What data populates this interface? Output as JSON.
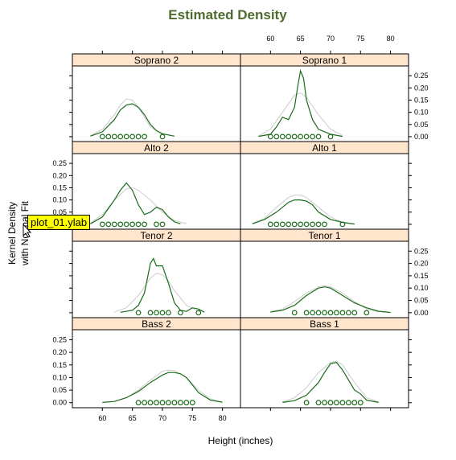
{
  "chart_data": {
    "type": "line",
    "title": "Estimated Density",
    "xlabel": "Height (inches)",
    "ylabel_lines": [
      "Kernel Density",
      "with Normal Fit"
    ],
    "xlim": [
      55,
      83
    ],
    "ylim": [
      -0.02,
      0.29
    ],
    "x_ticks": [
      60,
      65,
      70,
      75,
      80
    ],
    "y_ticks": [
      0,
      0.05,
      0.1,
      0.15,
      0.2,
      0.25
    ],
    "y_tick_labels": [
      "0.00",
      "0.05",
      "0.10",
      "0.15",
      "0.20",
      "0.25"
    ],
    "colors": {
      "density": "#1a6b1a",
      "normal_fit": "#cccccc",
      "points": "#1a6b1a",
      "strip": "#ffe5cc",
      "title": "#4f6b2f"
    },
    "panels": [
      {
        "name": "Soprano 2",
        "density": [
          [
            58,
            0.002
          ],
          [
            60,
            0.02
          ],
          [
            62,
            0.07
          ],
          [
            63,
            0.11
          ],
          [
            64,
            0.13
          ],
          [
            65,
            0.135
          ],
          [
            66,
            0.12
          ],
          [
            67,
            0.09
          ],
          [
            68,
            0.05
          ],
          [
            69,
            0.025
          ],
          [
            70,
            0.012
          ],
          [
            72,
            0.002
          ]
        ],
        "normal_fit": [
          [
            58,
            0.005
          ],
          [
            60,
            0.03
          ],
          [
            62,
            0.09
          ],
          [
            63,
            0.13
          ],
          [
            64,
            0.155
          ],
          [
            65,
            0.15
          ],
          [
            66,
            0.12
          ],
          [
            67,
            0.08
          ],
          [
            68,
            0.04
          ],
          [
            70,
            0.008
          ]
        ],
        "points": [
          60,
          61,
          62,
          63,
          64,
          65,
          66,
          67,
          70
        ]
      },
      {
        "name": "Soprano 1",
        "density": [
          [
            58,
            0.001
          ],
          [
            60,
            0.01
          ],
          [
            61,
            0.04
          ],
          [
            62,
            0.08
          ],
          [
            63,
            0.07
          ],
          [
            64,
            0.12
          ],
          [
            64.5,
            0.2
          ],
          [
            65,
            0.27
          ],
          [
            65.5,
            0.24
          ],
          [
            66,
            0.15
          ],
          [
            67,
            0.07
          ],
          [
            68,
            0.03
          ],
          [
            70,
            0.01
          ],
          [
            72,
            0.001
          ]
        ],
        "normal_fit": [
          [
            58,
            0.003
          ],
          [
            60,
            0.03
          ],
          [
            62,
            0.1
          ],
          [
            64,
            0.17
          ],
          [
            65,
            0.18
          ],
          [
            66,
            0.16
          ],
          [
            68,
            0.09
          ],
          [
            70,
            0.03
          ],
          [
            72,
            0.005
          ]
        ],
        "points": [
          60,
          61,
          62,
          63,
          64,
          65,
          66,
          67,
          68,
          70
        ]
      },
      {
        "name": "Alto 2",
        "density": [
          [
            58,
            0.002
          ],
          [
            60,
            0.03
          ],
          [
            62,
            0.1
          ],
          [
            63,
            0.14
          ],
          [
            64,
            0.17
          ],
          [
            65,
            0.14
          ],
          [
            66,
            0.08
          ],
          [
            67,
            0.04
          ],
          [
            68,
            0.05
          ],
          [
            69,
            0.07
          ],
          [
            70,
            0.06
          ],
          [
            71,
            0.03
          ],
          [
            72,
            0.01
          ],
          [
            73,
            0.002
          ]
        ],
        "normal_fit": [
          [
            58,
            0.005
          ],
          [
            60,
            0.04
          ],
          [
            62,
            0.1
          ],
          [
            64,
            0.145
          ],
          [
            65,
            0.15
          ],
          [
            66,
            0.14
          ],
          [
            68,
            0.1
          ],
          [
            70,
            0.05
          ],
          [
            72,
            0.015
          ],
          [
            74,
            0.003
          ]
        ],
        "points": [
          60,
          61,
          62,
          63,
          64,
          65,
          66,
          67,
          69,
          70
        ]
      },
      {
        "name": "Alto 1",
        "density": [
          [
            57,
            0.002
          ],
          [
            59,
            0.02
          ],
          [
            61,
            0.05
          ],
          [
            62,
            0.07
          ],
          [
            63,
            0.09
          ],
          [
            64,
            0.1
          ],
          [
            65,
            0.1
          ],
          [
            66,
            0.095
          ],
          [
            67,
            0.08
          ],
          [
            68,
            0.05
          ],
          [
            69,
            0.035
          ],
          [
            70,
            0.02
          ],
          [
            72,
            0.008
          ],
          [
            74,
            0.001
          ]
        ],
        "normal_fit": [
          [
            57,
            0.004
          ],
          [
            59,
            0.025
          ],
          [
            61,
            0.07
          ],
          [
            63,
            0.11
          ],
          [
            64,
            0.12
          ],
          [
            65,
            0.12
          ],
          [
            66,
            0.11
          ],
          [
            68,
            0.07
          ],
          [
            70,
            0.03
          ],
          [
            72,
            0.008
          ],
          [
            74,
            0.001
          ]
        ],
        "points": [
          60,
          61,
          62,
          63,
          64,
          65,
          66,
          67,
          68,
          69,
          72
        ]
      },
      {
        "name": "Tenor 2",
        "density": [
          [
            63,
            0.002
          ],
          [
            65,
            0.01
          ],
          [
            66,
            0.03
          ],
          [
            67,
            0.08
          ],
          [
            68,
            0.2
          ],
          [
            68.5,
            0.22
          ],
          [
            69,
            0.19
          ],
          [
            70,
            0.19
          ],
          [
            71,
            0.12
          ],
          [
            72,
            0.04
          ],
          [
            73,
            0.01
          ],
          [
            74,
            0.005
          ],
          [
            75,
            0.02
          ],
          [
            76,
            0.015
          ],
          [
            77,
            0.002
          ]
        ],
        "normal_fit": [
          [
            62,
            0.003
          ],
          [
            64,
            0.02
          ],
          [
            66,
            0.07
          ],
          [
            68,
            0.14
          ],
          [
            69,
            0.16
          ],
          [
            70,
            0.155
          ],
          [
            71,
            0.13
          ],
          [
            72,
            0.09
          ],
          [
            74,
            0.03
          ],
          [
            76,
            0.005
          ]
        ],
        "points": [
          66,
          68,
          69,
          70,
          71,
          73,
          76
        ]
      },
      {
        "name": "Tenor 1",
        "density": [
          [
            60,
            0.003
          ],
          [
            62,
            0.01
          ],
          [
            64,
            0.03
          ],
          [
            66,
            0.07
          ],
          [
            68,
            0.1
          ],
          [
            69,
            0.105
          ],
          [
            70,
            0.1
          ],
          [
            72,
            0.07
          ],
          [
            74,
            0.04
          ],
          [
            76,
            0.02
          ],
          [
            78,
            0.006
          ],
          [
            80,
            0.001
          ]
        ],
        "normal_fit": [
          [
            60,
            0.004
          ],
          [
            62,
            0.015
          ],
          [
            64,
            0.045
          ],
          [
            66,
            0.08
          ],
          [
            68,
            0.105
          ],
          [
            69,
            0.11
          ],
          [
            70,
            0.105
          ],
          [
            72,
            0.08
          ],
          [
            74,
            0.045
          ],
          [
            76,
            0.015
          ],
          [
            78,
            0.003
          ]
        ],
        "points": [
          64,
          66,
          67,
          68,
          69,
          70,
          71,
          72,
          73,
          74,
          76
        ]
      },
      {
        "name": "Bass 2",
        "density": [
          [
            60,
            0.001
          ],
          [
            62,
            0.005
          ],
          [
            64,
            0.02
          ],
          [
            66,
            0.045
          ],
          [
            68,
            0.08
          ],
          [
            70,
            0.11
          ],
          [
            71,
            0.12
          ],
          [
            72,
            0.12
          ],
          [
            73,
            0.115
          ],
          [
            74,
            0.1
          ],
          [
            75,
            0.07
          ],
          [
            76,
            0.04
          ],
          [
            78,
            0.01
          ],
          [
            80,
            0.002
          ]
        ],
        "normal_fit": [
          [
            62,
            0.005
          ],
          [
            64,
            0.02
          ],
          [
            66,
            0.05
          ],
          [
            68,
            0.09
          ],
          [
            70,
            0.125
          ],
          [
            71,
            0.13
          ],
          [
            72,
            0.128
          ],
          [
            74,
            0.1
          ],
          [
            76,
            0.05
          ],
          [
            78,
            0.015
          ],
          [
            80,
            0.002
          ]
        ],
        "points": [
          66,
          67,
          68,
          69,
          70,
          71,
          72,
          73,
          74,
          75
        ]
      },
      {
        "name": "Bass 1",
        "density": [
          [
            62,
            0.001
          ],
          [
            64,
            0.008
          ],
          [
            66,
            0.03
          ],
          [
            68,
            0.08
          ],
          [
            69,
            0.12
          ],
          [
            70,
            0.155
          ],
          [
            71,
            0.16
          ],
          [
            72,
            0.13
          ],
          [
            73,
            0.09
          ],
          [
            74,
            0.05
          ],
          [
            75,
            0.035
          ],
          [
            76,
            0.01
          ],
          [
            78,
            0.001
          ]
        ],
        "normal_fit": [
          [
            62,
            0.003
          ],
          [
            64,
            0.02
          ],
          [
            66,
            0.06
          ],
          [
            68,
            0.12
          ],
          [
            70,
            0.16
          ],
          [
            71,
            0.165
          ],
          [
            72,
            0.15
          ],
          [
            74,
            0.08
          ],
          [
            76,
            0.02
          ],
          [
            78,
            0.003
          ]
        ],
        "points": [
          66,
          68,
          69,
          70,
          71,
          72,
          73,
          74,
          75
        ]
      }
    ]
  },
  "tooltip": {
    "text": "plot_01.ylab"
  }
}
